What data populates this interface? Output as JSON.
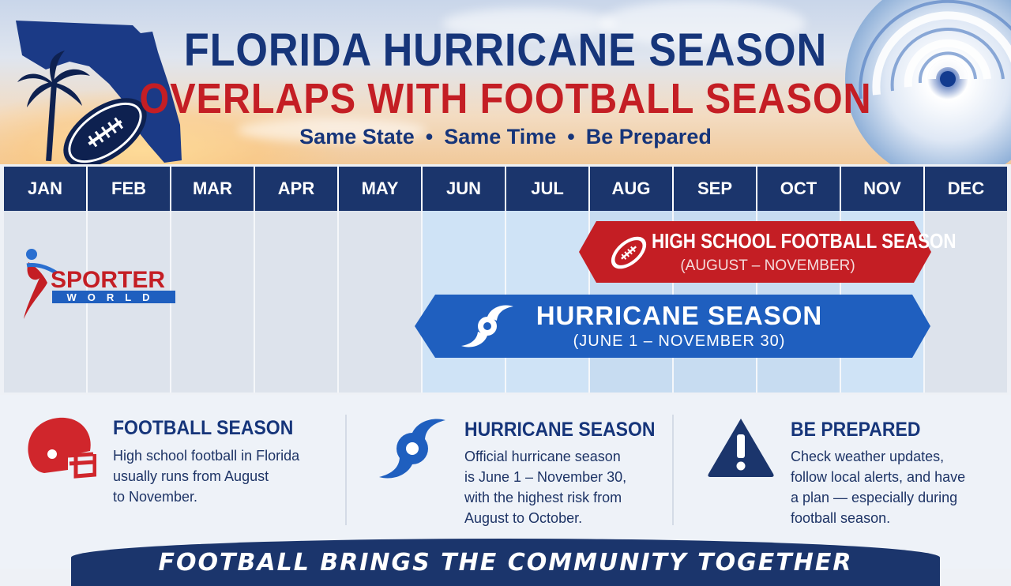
{
  "header": {
    "title_line1": "FLORIDA HURRICANE SEASON",
    "title_line2": "OVERLAPS WITH FOOTBALL SEASON",
    "tagline_parts": [
      "Same State",
      "Same Time",
      "Be Prepared"
    ],
    "tagline_separator": "•"
  },
  "months": [
    "JAN",
    "FEB",
    "MAR",
    "APR",
    "MAY",
    "JUN",
    "JUL",
    "AUG",
    "SEP",
    "OCT",
    "NOV",
    "DEC"
  ],
  "logo": {
    "line1": "SPORTER",
    "line2": "WORLD"
  },
  "football_banner": {
    "title": "HIGH SCHOOL FOOTBALL SEASON",
    "subtitle": "(AUGUST – NOVEMBER)",
    "start_month": "AUG",
    "end_month": "NOV",
    "color": "#c41e24"
  },
  "hurricane_banner": {
    "title": "HURRICANE SEASON",
    "subtitle": "(JUNE 1 – NOVEMBER 30)",
    "start_month": "JUN",
    "end_month": "NOV",
    "color": "#1f5fbf"
  },
  "info": [
    {
      "icon": "football-helmet-icon",
      "title": "FOOTBALL SEASON",
      "lines": [
        "High school football in Florida",
        "usually runs from August",
        "to November."
      ]
    },
    {
      "icon": "hurricane-icon",
      "title": "HURRICANE SEASON",
      "lines": [
        "Official hurricane season",
        "is June 1 – November 30,",
        "with the highest risk from",
        "August to October."
      ]
    },
    {
      "icon": "warning-icon",
      "title": "BE PREPARED",
      "lines": [
        "Check weather updates,",
        "follow local alerts, and have",
        "a plan — especially during",
        "football season."
      ]
    }
  ],
  "footer": {
    "text": "FOOTBALL BRINGS THE COMMUNITY TOGETHER"
  },
  "colors": {
    "navy": "#16357a",
    "red": "#c41e24",
    "blue": "#1f5fbf",
    "month_bar": "#1b356c"
  }
}
